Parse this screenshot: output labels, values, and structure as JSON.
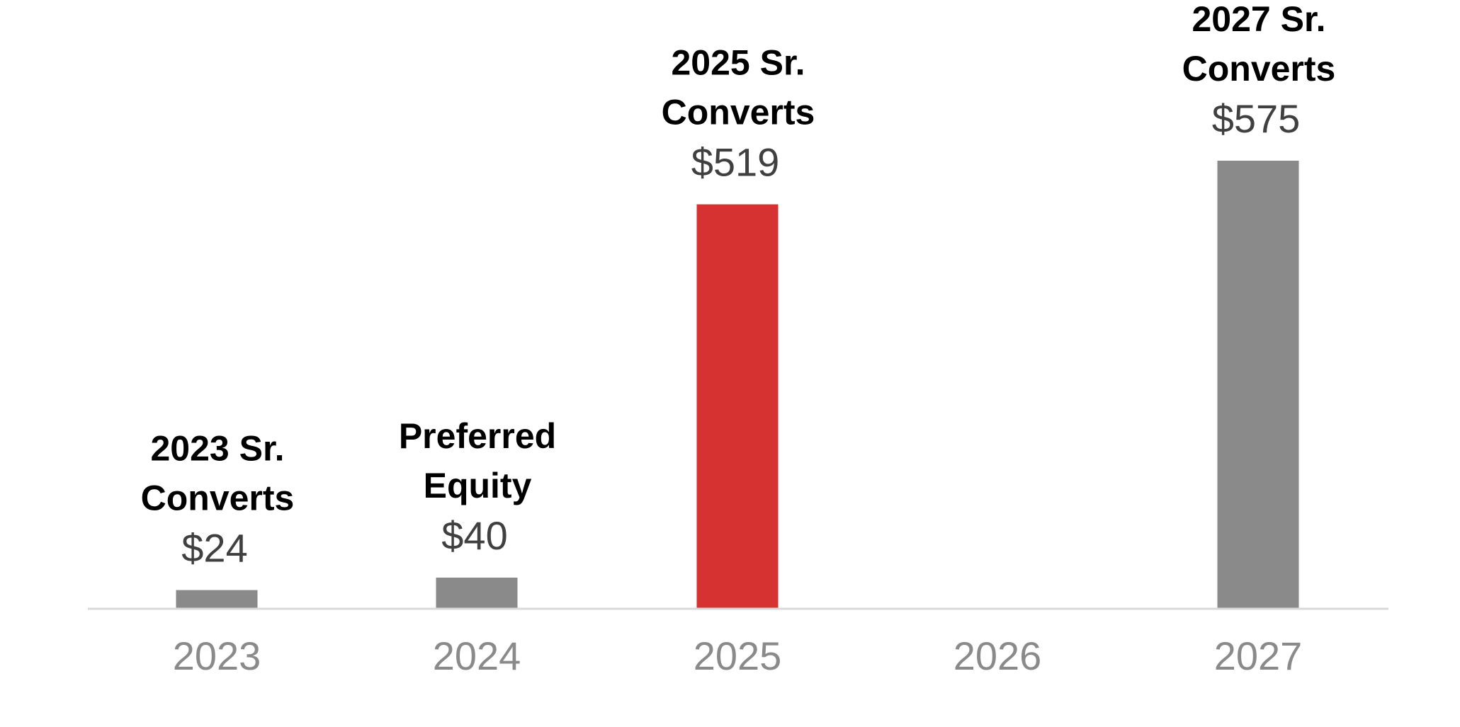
{
  "chart_data": {
    "type": "bar",
    "title": "",
    "xlabel": "",
    "ylabel": "",
    "categories": [
      "2023",
      "2024",
      "2025",
      "2026",
      "2027"
    ],
    "values": [
      24,
      40,
      519,
      null,
      575
    ],
    "value_labels": [
      "$24",
      "$40",
      "$519",
      "",
      "$575"
    ],
    "bar_labels": [
      [
        "2023 Sr.",
        "Converts"
      ],
      [
        "Preferred",
        "Equity"
      ],
      [
        "2025 Sr.",
        "Converts"
      ],
      [],
      [
        "2027 Sr.",
        "Converts"
      ]
    ],
    "bar_colors": [
      "#8a8a8a",
      "#8a8a8a",
      "#d63232",
      "#8a8a8a",
      "#8a8a8a"
    ],
    "colors": {
      "default_bar": "#8a8a8a",
      "highlight_bar": "#d63232",
      "axis_line": "#d9d9d9",
      "tick_text": "#8a8a8a",
      "value_text": "#404040",
      "label_text": "#000000"
    },
    "ylim": [
      0,
      575
    ],
    "grid": false,
    "legend": "none"
  }
}
